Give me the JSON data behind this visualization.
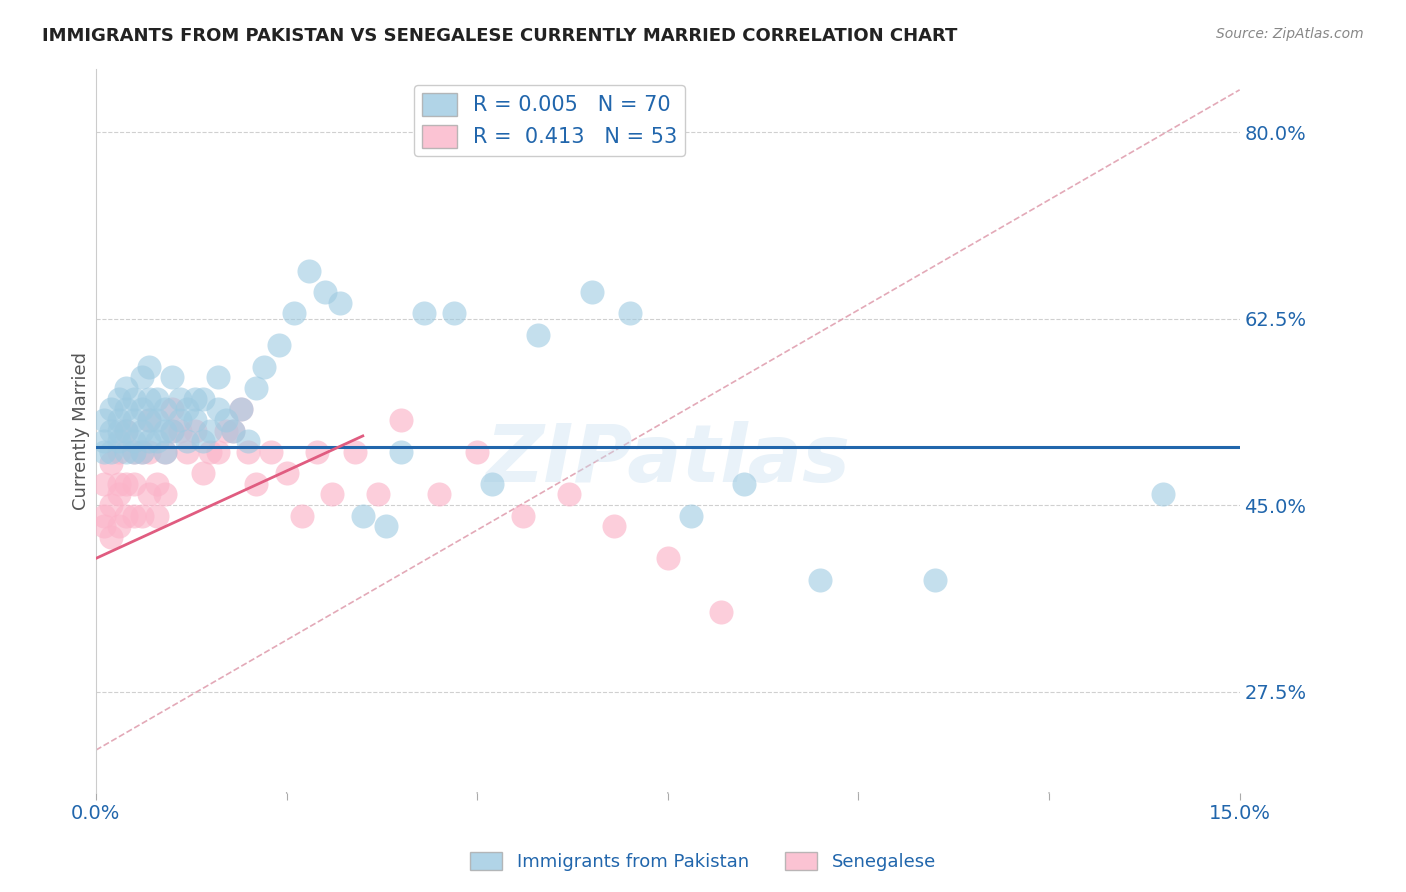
{
  "title": "IMMIGRANTS FROM PAKISTAN VS SENEGALESE CURRENTLY MARRIED CORRELATION CHART",
  "source": "Source: ZipAtlas.com",
  "ylabel": "Currently Married",
  "yticks": [
    0.275,
    0.45,
    0.625,
    0.8
  ],
  "ytick_labels": [
    "27.5%",
    "45.0%",
    "62.5%",
    "80.0%"
  ],
  "x_min": 0.0,
  "x_max": 0.15,
  "y_min": 0.18,
  "y_max": 0.86,
  "blue_line_y": 0.505,
  "blue_color": "#9ecae1",
  "pink_color": "#fbb4c9",
  "blue_line_color": "#2166ac",
  "pink_line_color": "#e05c80",
  "dashed_line_color": "#e0a0b0",
  "grid_color": "#d0d0d0",
  "background_color": "#ffffff",
  "watermark": "ZIPatlas",
  "pink_line_x0": 0.0,
  "pink_line_y0": 0.4,
  "pink_line_x1": 0.035,
  "pink_line_y1": 0.515,
  "pk_x": [
    0.001,
    0.001,
    0.001,
    0.002,
    0.002,
    0.002,
    0.003,
    0.003,
    0.003,
    0.003,
    0.004,
    0.004,
    0.004,
    0.004,
    0.005,
    0.005,
    0.005,
    0.005,
    0.006,
    0.006,
    0.006,
    0.006,
    0.007,
    0.007,
    0.007,
    0.007,
    0.008,
    0.008,
    0.008,
    0.009,
    0.009,
    0.009,
    0.01,
    0.01,
    0.011,
    0.011,
    0.012,
    0.012,
    0.013,
    0.013,
    0.014,
    0.014,
    0.015,
    0.016,
    0.016,
    0.017,
    0.018,
    0.019,
    0.02,
    0.021,
    0.022,
    0.024,
    0.026,
    0.028,
    0.03,
    0.032,
    0.035,
    0.038,
    0.04,
    0.043,
    0.047,
    0.052,
    0.058,
    0.065,
    0.07,
    0.078,
    0.085,
    0.095,
    0.11,
    0.14
  ],
  "pk_y": [
    0.51,
    0.53,
    0.5,
    0.52,
    0.54,
    0.5,
    0.51,
    0.52,
    0.55,
    0.53,
    0.5,
    0.52,
    0.54,
    0.56,
    0.51,
    0.53,
    0.55,
    0.5,
    0.52,
    0.54,
    0.5,
    0.57,
    0.51,
    0.53,
    0.55,
    0.58,
    0.51,
    0.53,
    0.55,
    0.52,
    0.54,
    0.5,
    0.52,
    0.57,
    0.53,
    0.55,
    0.51,
    0.54,
    0.53,
    0.55,
    0.51,
    0.55,
    0.52,
    0.54,
    0.57,
    0.53,
    0.52,
    0.54,
    0.51,
    0.56,
    0.58,
    0.6,
    0.63,
    0.67,
    0.65,
    0.64,
    0.44,
    0.43,
    0.5,
    0.63,
    0.63,
    0.47,
    0.61,
    0.65,
    0.63,
    0.44,
    0.47,
    0.38,
    0.38,
    0.46
  ],
  "sn_x": [
    0.001,
    0.001,
    0.001,
    0.002,
    0.002,
    0.002,
    0.003,
    0.003,
    0.003,
    0.003,
    0.004,
    0.004,
    0.004,
    0.005,
    0.005,
    0.005,
    0.006,
    0.006,
    0.007,
    0.007,
    0.007,
    0.008,
    0.008,
    0.009,
    0.009,
    0.01,
    0.01,
    0.011,
    0.012,
    0.013,
    0.014,
    0.015,
    0.016,
    0.017,
    0.018,
    0.019,
    0.02,
    0.021,
    0.023,
    0.025,
    0.027,
    0.029,
    0.031,
    0.034,
    0.037,
    0.04,
    0.045,
    0.05,
    0.056,
    0.062,
    0.068,
    0.075,
    0.082
  ],
  "sn_y": [
    0.44,
    0.47,
    0.43,
    0.45,
    0.42,
    0.49,
    0.46,
    0.43,
    0.47,
    0.5,
    0.44,
    0.47,
    0.52,
    0.44,
    0.47,
    0.5,
    0.44,
    0.5,
    0.46,
    0.5,
    0.53,
    0.44,
    0.47,
    0.46,
    0.5,
    0.52,
    0.54,
    0.52,
    0.5,
    0.52,
    0.48,
    0.5,
    0.5,
    0.52,
    0.52,
    0.54,
    0.5,
    0.47,
    0.5,
    0.48,
    0.44,
    0.5,
    0.46,
    0.5,
    0.46,
    0.53,
    0.46,
    0.5,
    0.44,
    0.46,
    0.43,
    0.4,
    0.35
  ]
}
